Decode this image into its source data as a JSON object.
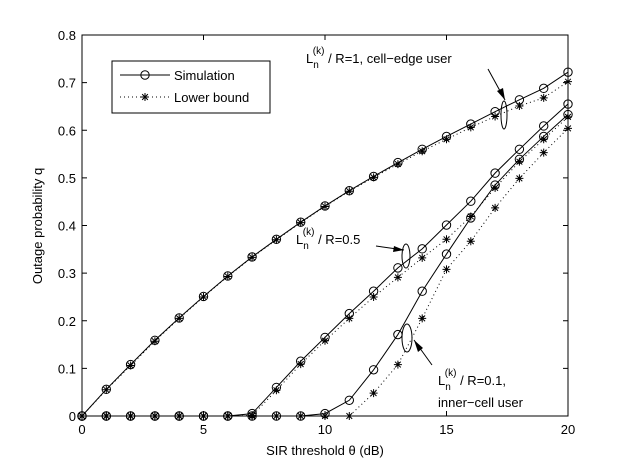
{
  "chart_data": {
    "type": "line",
    "title": "",
    "xlabel": "SIR threshold θ (dB)",
    "ylabel": "Outage probability q",
    "xlim": [
      0,
      20
    ],
    "ylim": [
      0,
      0.8
    ],
    "xticks": [
      0,
      5,
      10,
      15,
      20
    ],
    "yticks": [
      0,
      0.1,
      0.2,
      0.3,
      0.4,
      0.5,
      0.6,
      0.7,
      0.8
    ],
    "grid": false,
    "legend_position": "top-left",
    "legend": [
      {
        "label": "Simulation",
        "line": "solid",
        "marker": "circle"
      },
      {
        "label": "Lower bound",
        "line": "dotted",
        "marker": "asterisk"
      }
    ],
    "x": [
      0,
      1,
      2,
      3,
      4,
      5,
      6,
      7,
      8,
      9,
      10,
      11,
      12,
      13,
      14,
      15,
      16,
      17,
      18,
      19,
      20
    ],
    "groups": [
      {
        "annotation": [
          "L",
          "n",
          "(k)",
          " / R=1, cell−edge user"
        ],
        "simulation": [
          0.0,
          0.056,
          0.108,
          0.159,
          0.206,
          0.251,
          0.294,
          0.334,
          0.371,
          0.407,
          0.441,
          0.473,
          0.503,
          0.532,
          0.56,
          0.587,
          0.613,
          0.639,
          0.664,
          0.688,
          0.722
        ],
        "lower_bound": [
          0.0,
          0.055,
          0.106,
          0.157,
          0.205,
          0.25,
          0.293,
          0.333,
          0.37,
          0.406,
          0.44,
          0.472,
          0.501,
          0.529,
          0.556,
          0.581,
          0.606,
          0.629,
          0.651,
          0.668,
          0.702
        ]
      },
      {
        "annotation": [
          "L",
          "n",
          "(k)",
          " / R=0.5"
        ],
        "simulation": [
          0.0,
          0.0,
          0.0,
          0.0,
          0.0,
          0.0,
          0.0,
          0.005,
          0.06,
          0.115,
          0.165,
          0.215,
          0.262,
          0.311,
          0.351,
          0.401,
          0.451,
          0.51,
          0.56,
          0.609,
          0.655
        ],
        "lower_bound": [
          0.0,
          0.0,
          0.0,
          0.0,
          0.0,
          0.0,
          0.0,
          0.001,
          0.054,
          0.109,
          0.158,
          0.205,
          0.25,
          0.291,
          0.332,
          0.371,
          0.419,
          0.479,
          0.534,
          0.581,
          0.628
        ]
      },
      {
        "annotation": [
          "L",
          "n",
          "(k)",
          " / R=0.1,",
          "inner−cell user"
        ],
        "simulation": [
          0.0,
          0.0,
          0.0,
          0.0,
          0.0,
          0.0,
          0.0,
          0.0,
          0.0,
          0.0,
          0.005,
          0.033,
          0.097,
          0.171,
          0.262,
          0.34,
          0.416,
          0.485,
          0.539,
          0.587,
          0.633
        ],
        "lower_bound": [
          0.0,
          0.0,
          0.0,
          0.0,
          0.0,
          0.0,
          0.0,
          0.0,
          0.0,
          0.0,
          0.0,
          0.0,
          0.048,
          0.108,
          0.205,
          0.308,
          0.367,
          0.437,
          0.499,
          0.553,
          0.604
        ]
      }
    ]
  }
}
